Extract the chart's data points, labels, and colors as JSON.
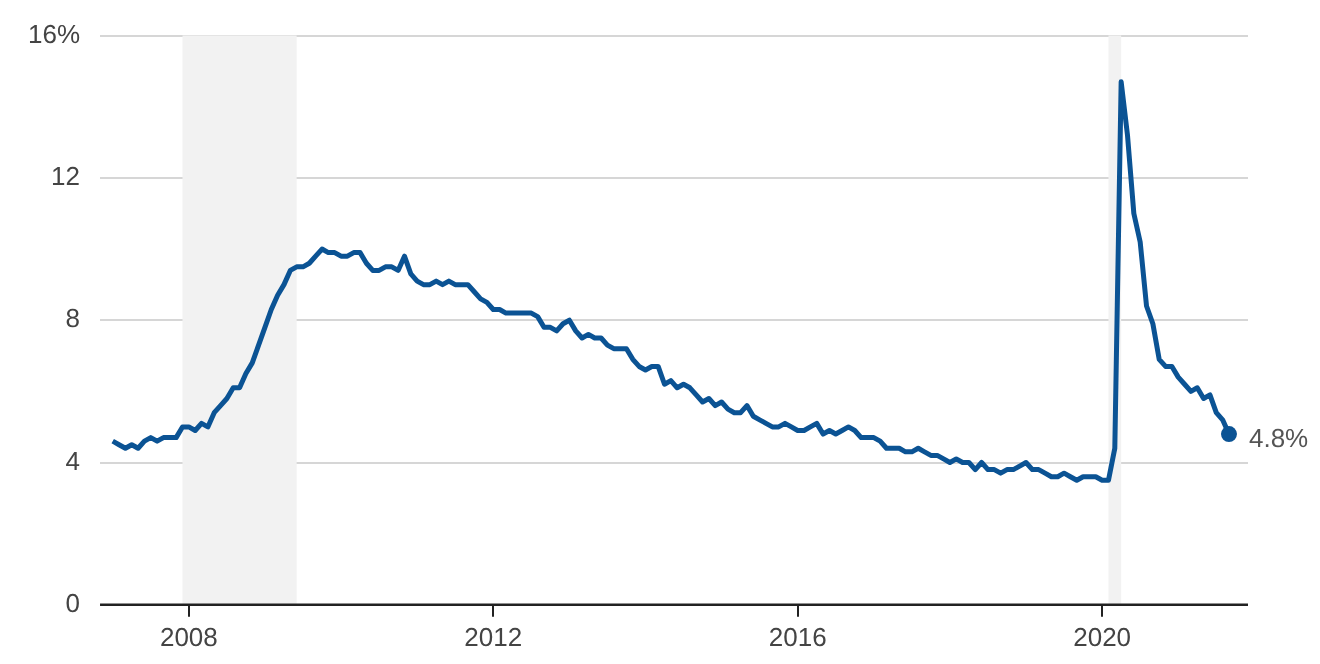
{
  "chart_data": {
    "type": "line",
    "x": [
      "2007-01",
      "2007-02",
      "2007-03",
      "2007-04",
      "2007-05",
      "2007-06",
      "2007-07",
      "2007-08",
      "2007-09",
      "2007-10",
      "2007-11",
      "2007-12",
      "2008-01",
      "2008-02",
      "2008-03",
      "2008-04",
      "2008-05",
      "2008-06",
      "2008-07",
      "2008-08",
      "2008-09",
      "2008-10",
      "2008-11",
      "2008-12",
      "2009-01",
      "2009-02",
      "2009-03",
      "2009-04",
      "2009-05",
      "2009-06",
      "2009-07",
      "2009-08",
      "2009-09",
      "2009-10",
      "2009-11",
      "2009-12",
      "2010-01",
      "2010-02",
      "2010-03",
      "2010-04",
      "2010-05",
      "2010-06",
      "2010-07",
      "2010-08",
      "2010-09",
      "2010-10",
      "2010-11",
      "2010-12",
      "2011-01",
      "2011-02",
      "2011-03",
      "2011-04",
      "2011-05",
      "2011-06",
      "2011-07",
      "2011-08",
      "2011-09",
      "2011-10",
      "2011-11",
      "2011-12",
      "2012-01",
      "2012-02",
      "2012-03",
      "2012-04",
      "2012-05",
      "2012-06",
      "2012-07",
      "2012-08",
      "2012-09",
      "2012-10",
      "2012-11",
      "2012-12",
      "2013-01",
      "2013-02",
      "2013-03",
      "2013-04",
      "2013-05",
      "2013-06",
      "2013-07",
      "2013-08",
      "2013-09",
      "2013-10",
      "2013-11",
      "2013-12",
      "2014-01",
      "2014-02",
      "2014-03",
      "2014-04",
      "2014-05",
      "2014-06",
      "2014-07",
      "2014-08",
      "2014-09",
      "2014-10",
      "2014-11",
      "2014-12",
      "2015-01",
      "2015-02",
      "2015-03",
      "2015-04",
      "2015-05",
      "2015-06",
      "2015-07",
      "2015-08",
      "2015-09",
      "2015-10",
      "2015-11",
      "2015-12",
      "2016-01",
      "2016-02",
      "2016-03",
      "2016-04",
      "2016-05",
      "2016-06",
      "2016-07",
      "2016-08",
      "2016-09",
      "2016-10",
      "2016-11",
      "2016-12",
      "2017-01",
      "2017-02",
      "2017-03",
      "2017-04",
      "2017-05",
      "2017-06",
      "2017-07",
      "2017-08",
      "2017-09",
      "2017-10",
      "2017-11",
      "2017-12",
      "2018-01",
      "2018-02",
      "2018-03",
      "2018-04",
      "2018-05",
      "2018-06",
      "2018-07",
      "2018-08",
      "2018-09",
      "2018-10",
      "2018-11",
      "2018-12",
      "2019-01",
      "2019-02",
      "2019-03",
      "2019-04",
      "2019-05",
      "2019-06",
      "2019-07",
      "2019-08",
      "2019-09",
      "2019-10",
      "2019-11",
      "2019-12",
      "2020-01",
      "2020-02",
      "2020-03",
      "2020-04",
      "2020-05",
      "2020-06",
      "2020-07",
      "2020-08",
      "2020-09",
      "2020-10",
      "2020-11",
      "2020-12",
      "2021-01",
      "2021-02",
      "2021-03",
      "2021-04",
      "2021-05",
      "2021-06",
      "2021-07",
      "2021-08",
      "2021-09"
    ],
    "series": [
      {
        "color": "#0b5394",
        "values": [
          4.6,
          4.5,
          4.4,
          4.5,
          4.4,
          4.6,
          4.7,
          4.6,
          4.7,
          4.7,
          4.7,
          5.0,
          5.0,
          4.9,
          5.1,
          5.0,
          5.4,
          5.6,
          5.8,
          6.1,
          6.1,
          6.5,
          6.8,
          7.3,
          7.8,
          8.3,
          8.7,
          9.0,
          9.4,
          9.5,
          9.5,
          9.6,
          9.8,
          10.0,
          9.9,
          9.9,
          9.8,
          9.8,
          9.9,
          9.9,
          9.6,
          9.4,
          9.4,
          9.5,
          9.5,
          9.4,
          9.8,
          9.3,
          9.1,
          9.0,
          9.0,
          9.1,
          9.0,
          9.1,
          9.0,
          9.0,
          9.0,
          8.8,
          8.6,
          8.5,
          8.3,
          8.3,
          8.2,
          8.2,
          8.2,
          8.2,
          8.2,
          8.1,
          7.8,
          7.8,
          7.7,
          7.9,
          8.0,
          7.7,
          7.5,
          7.6,
          7.5,
          7.5,
          7.3,
          7.2,
          7.2,
          7.2,
          6.9,
          6.7,
          6.6,
          6.7,
          6.7,
          6.2,
          6.3,
          6.1,
          6.2,
          6.1,
          5.9,
          5.7,
          5.8,
          5.6,
          5.7,
          5.5,
          5.4,
          5.4,
          5.6,
          5.3,
          5.2,
          5.1,
          5.0,
          5.0,
          5.1,
          5.0,
          4.9,
          4.9,
          5.0,
          5.1,
          4.8,
          4.9,
          4.8,
          4.9,
          5.0,
          4.9,
          4.7,
          4.7,
          4.7,
          4.6,
          4.4,
          4.4,
          4.4,
          4.3,
          4.3,
          4.4,
          4.3,
          4.2,
          4.2,
          4.1,
          4.0,
          4.1,
          4.0,
          4.0,
          3.8,
          4.0,
          3.8,
          3.8,
          3.7,
          3.8,
          3.8,
          3.9,
          4.0,
          3.8,
          3.8,
          3.7,
          3.6,
          3.6,
          3.7,
          3.6,
          3.5,
          3.6,
          3.6,
          3.6,
          3.5,
          3.5,
          4.4,
          14.7,
          13.2,
          11.0,
          10.2,
          8.4,
          7.9,
          6.9,
          6.7,
          6.7,
          6.4,
          6.2,
          6.0,
          6.1,
          5.8,
          5.9,
          5.4,
          5.2,
          4.8
        ]
      }
    ],
    "xlim": [
      "2006-11",
      "2021-12"
    ],
    "xticks": [
      "2008",
      "2012",
      "2016",
      "2020"
    ],
    "ylim": [
      0,
      16
    ],
    "yticks": [
      0,
      4,
      8,
      12,
      {
        "value": 16,
        "label": "16%"
      }
    ],
    "bands": [
      {
        "axis": "x",
        "from": "2007-12",
        "to": "2009-06",
        "color": "#f2f2f2"
      },
      {
        "axis": "x",
        "from": "2020-02",
        "to": "2020-04",
        "color": "#f2f2f2"
      }
    ],
    "annotations": [
      {
        "text": "4.8%",
        "x": "2021-09",
        "y": 4.8
      }
    ],
    "grid": "y",
    "legend": false,
    "marker": "none",
    "line_style": "solid"
  }
}
